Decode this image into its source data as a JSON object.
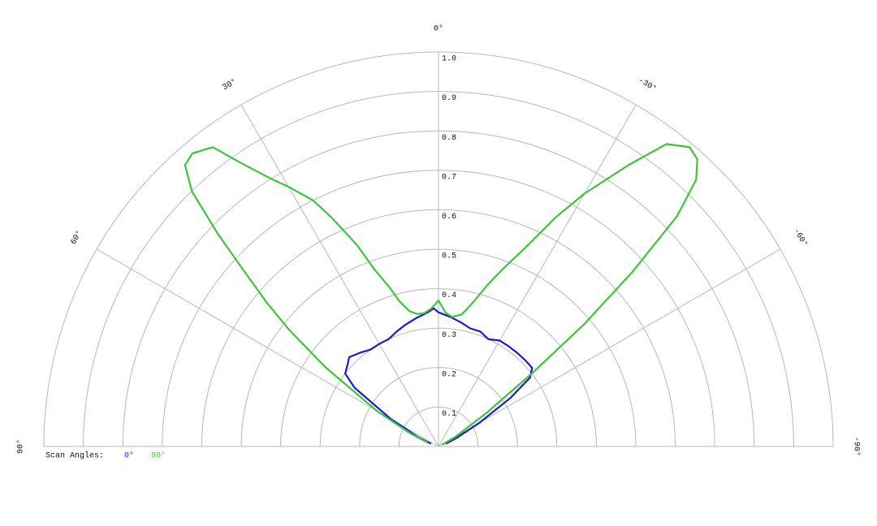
{
  "chart_data": {
    "type": "polar",
    "rlim": [
      0,
      1
    ],
    "rticks": [
      0.1,
      0.2,
      0.3,
      0.4,
      0.5,
      0.6,
      0.7,
      0.8,
      0.9,
      {
        "value": 1,
        "label": "1.0"
      }
    ],
    "thetalim": [
      90,
      -90
    ],
    "thetaticks": [
      {
        "value": 90,
        "label": "90°"
      },
      {
        "value": 60,
        "label": "60°"
      },
      {
        "value": 30,
        "label": "30°"
      },
      {
        "value": 0,
        "label": "0°"
      },
      {
        "value": -30,
        "label": "-30°"
      },
      {
        "value": -60,
        "label": "-60°"
      },
      {
        "value": -90,
        "label": "-90°"
      }
    ],
    "legend_title": "Scan Angles:",
    "series": [
      {
        "name": "0°",
        "color": "#1a1ad0",
        "theta": [
          70,
          65,
          60,
          55,
          52,
          48,
          45,
          40,
          35,
          30,
          25,
          20,
          15,
          10,
          5,
          2,
          0,
          -5,
          -10,
          -15,
          -20,
          -25,
          -30,
          -35,
          -40,
          -45,
          -50,
          -53,
          -56,
          -60,
          -65,
          -70
        ],
        "values": [
          0.02,
          0.06,
          0.14,
          0.26,
          0.3,
          0.31,
          0.32,
          0.31,
          0.3,
          0.3,
          0.3,
          0.31,
          0.32,
          0.33,
          0.34,
          0.35,
          0.34,
          0.33,
          0.32,
          0.31,
          0.31,
          0.3,
          0.31,
          0.31,
          0.31,
          0.31,
          0.31,
          0.29,
          0.22,
          0.12,
          0.05,
          0.02
        ]
      },
      {
        "name": "90°",
        "color": "#3cc43c",
        "theta": [
          70,
          65,
          60,
          55,
          52,
          50,
          48,
          46,
          44,
          42,
          40,
          37,
          35,
          32,
          30,
          27,
          25,
          22,
          20,
          17,
          15,
          12,
          9,
          6,
          3,
          0,
          -3,
          -6,
          -10,
          -13,
          -17,
          -20,
          -24,
          -27,
          -30,
          -34,
          -37,
          -40,
          -42,
          -44,
          -46,
          -48,
          -50,
          -52,
          -55,
          -60,
          -65
        ],
        "values": [
          0.03,
          0.08,
          0.18,
          0.35,
          0.48,
          0.57,
          0.66,
          0.78,
          0.9,
          0.96,
          0.97,
          0.95,
          0.88,
          0.8,
          0.76,
          0.7,
          0.64,
          0.55,
          0.48,
          0.42,
          0.38,
          0.35,
          0.34,
          0.34,
          0.35,
          0.37,
          0.34,
          0.33,
          0.34,
          0.37,
          0.43,
          0.48,
          0.56,
          0.65,
          0.74,
          0.86,
          0.96,
          0.99,
          0.98,
          0.94,
          0.84,
          0.66,
          0.48,
          0.3,
          0.15,
          0.05,
          0.01
        ]
      }
    ]
  }
}
